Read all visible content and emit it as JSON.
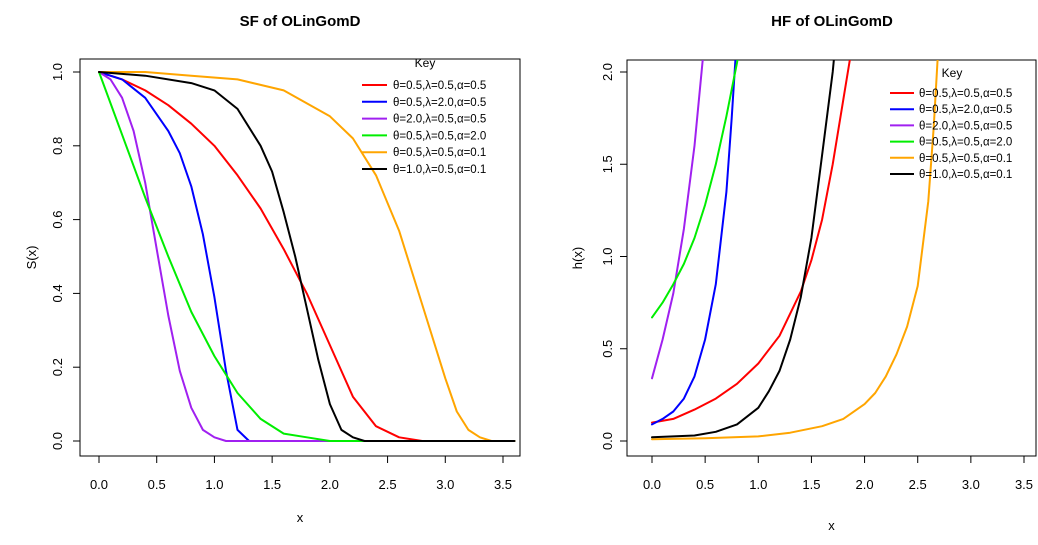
{
  "chart_data": [
    {
      "type": "line",
      "title": "SF of OLinGomD",
      "xlabel": "x",
      "ylabel": "S(x)",
      "xlim": [
        0,
        3.6
      ],
      "ylim": [
        0,
        1
      ],
      "xticks": [
        "0.0",
        "0.5",
        "1.0",
        "1.5",
        "2.0",
        "2.5",
        "3.0",
        "3.5"
      ],
      "yticks": [
        "0.0",
        "0.2",
        "0.4",
        "0.6",
        "0.8",
        "1.0"
      ],
      "grid": false,
      "legend_title": "Key",
      "legend_position": "top-right",
      "series": [
        {
          "name": "θ=0.5,λ=0.5,α=0.5",
          "color": "#ff0000",
          "x": [
            0,
            0.2,
            0.4,
            0.6,
            0.8,
            1.0,
            1.2,
            1.4,
            1.6,
            1.8,
            2.0,
            2.2,
            2.4,
            2.6,
            2.8,
            3.0,
            3.2,
            3.4,
            3.6
          ],
          "y": [
            1.0,
            0.98,
            0.95,
            0.91,
            0.86,
            0.8,
            0.72,
            0.63,
            0.52,
            0.4,
            0.26,
            0.12,
            0.04,
            0.01,
            0.0,
            0.0,
            0.0,
            0.0,
            0.0
          ]
        },
        {
          "name": "θ=0.5,λ=2.0,α=0.5",
          "color": "#0000ff",
          "x": [
            0,
            0.2,
            0.4,
            0.6,
            0.7,
            0.8,
            0.9,
            1.0,
            1.1,
            1.2,
            1.3,
            1.4,
            1.6,
            2.0,
            3.6
          ],
          "y": [
            1.0,
            0.98,
            0.93,
            0.84,
            0.78,
            0.69,
            0.56,
            0.39,
            0.19,
            0.03,
            0.0,
            0.0,
            0.0,
            0.0,
            0.0
          ]
        },
        {
          "name": "θ=2.0,λ=0.5,α=0.5",
          "color": "#a020f0",
          "x": [
            0,
            0.1,
            0.2,
            0.3,
            0.4,
            0.5,
            0.6,
            0.7,
            0.8,
            0.9,
            1.0,
            1.1,
            1.2,
            1.4,
            3.6
          ],
          "y": [
            1.0,
            0.98,
            0.93,
            0.84,
            0.7,
            0.52,
            0.34,
            0.19,
            0.09,
            0.03,
            0.01,
            0.0,
            0.0,
            0.0,
            0.0
          ]
        },
        {
          "name": "θ=0.5,λ=0.5,α=2.0",
          "color": "#00ee00",
          "x": [
            0,
            0.2,
            0.4,
            0.6,
            0.8,
            1.0,
            1.2,
            1.4,
            1.6,
            1.8,
            2.0,
            2.2,
            2.4,
            3.6
          ],
          "y": [
            1.0,
            0.83,
            0.66,
            0.5,
            0.35,
            0.23,
            0.13,
            0.06,
            0.02,
            0.01,
            0.0,
            0.0,
            0.0,
            0.0
          ]
        },
        {
          "name": "θ=0.5,λ=0.5,α=0.1",
          "color": "#ffa500",
          "x": [
            0,
            0.4,
            0.8,
            1.2,
            1.6,
            2.0,
            2.2,
            2.4,
            2.6,
            2.8,
            3.0,
            3.1,
            3.2,
            3.3,
            3.4,
            3.6
          ],
          "y": [
            1.0,
            1.0,
            0.99,
            0.98,
            0.95,
            0.88,
            0.82,
            0.72,
            0.57,
            0.37,
            0.17,
            0.08,
            0.03,
            0.01,
            0.0,
            0.0
          ]
        },
        {
          "name": "θ=1.0,λ=0.5,α=0.1",
          "color": "#000000",
          "x": [
            0,
            0.4,
            0.8,
            1.0,
            1.2,
            1.4,
            1.5,
            1.6,
            1.7,
            1.8,
            1.9,
            2.0,
            2.1,
            2.2,
            2.3,
            2.4,
            3.6
          ],
          "y": [
            1.0,
            0.99,
            0.97,
            0.95,
            0.9,
            0.8,
            0.73,
            0.62,
            0.5,
            0.36,
            0.22,
            0.1,
            0.03,
            0.01,
            0.0,
            0.0,
            0.0
          ]
        }
      ]
    },
    {
      "type": "line",
      "title": "HF of OLinGomD",
      "xlabel": "x",
      "ylabel": "h(x)",
      "xlim": [
        0,
        3.6
      ],
      "ylim": [
        0,
        2.0
      ],
      "xticks": [
        "0.0",
        "0.5",
        "1.0",
        "1.5",
        "2.0",
        "2.5",
        "3.0",
        "3.5"
      ],
      "yticks": [
        "0.0",
        "0.5",
        "1.0",
        "1.5",
        "2.0"
      ],
      "grid": false,
      "legend_title": "Key",
      "legend_position": "top-right",
      "series": [
        {
          "name": "θ=0.5,λ=0.5,α=0.5",
          "color": "#ff0000",
          "x": [
            0,
            0.2,
            0.4,
            0.6,
            0.8,
            1.0,
            1.2,
            1.4,
            1.5,
            1.6,
            1.7,
            1.8,
            1.9
          ],
          "y": [
            0.1,
            0.12,
            0.17,
            0.23,
            0.31,
            0.42,
            0.57,
            0.81,
            0.98,
            1.2,
            1.5,
            1.85,
            2.2
          ]
        },
        {
          "name": "θ=0.5,λ=2.0,α=0.5",
          "color": "#0000ff",
          "x": [
            0,
            0.1,
            0.2,
            0.3,
            0.4,
            0.5,
            0.6,
            0.7,
            0.75,
            0.8,
            0.85
          ],
          "y": [
            0.09,
            0.12,
            0.16,
            0.23,
            0.35,
            0.55,
            0.85,
            1.35,
            1.75,
            2.2,
            2.6
          ]
        },
        {
          "name": "θ=2.0,λ=0.5,α=0.5",
          "color": "#a020f0",
          "x": [
            0,
            0.1,
            0.2,
            0.3,
            0.4,
            0.45,
            0.5
          ],
          "y": [
            0.34,
            0.55,
            0.8,
            1.15,
            1.6,
            1.9,
            2.2
          ]
        },
        {
          "name": "θ=0.5,λ=0.5,α=2.0",
          "color": "#00ee00",
          "x": [
            0,
            0.1,
            0.2,
            0.3,
            0.4,
            0.5,
            0.6,
            0.7,
            0.8,
            0.9
          ],
          "y": [
            0.67,
            0.75,
            0.85,
            0.96,
            1.1,
            1.28,
            1.5,
            1.76,
            2.05,
            2.4
          ]
        },
        {
          "name": "θ=0.5,λ=0.5,α=0.1",
          "color": "#ffa500",
          "x": [
            0,
            0.5,
            1.0,
            1.3,
            1.6,
            1.8,
            2.0,
            2.1,
            2.2,
            2.3,
            2.4,
            2.5,
            2.6,
            2.65,
            2.7
          ],
          "y": [
            0.01,
            0.015,
            0.025,
            0.045,
            0.08,
            0.12,
            0.2,
            0.26,
            0.35,
            0.47,
            0.62,
            0.84,
            1.3,
            1.7,
            2.2
          ]
        },
        {
          "name": "θ=1.0,λ=0.5,α=0.1",
          "color": "#000000",
          "x": [
            0,
            0.4,
            0.6,
            0.8,
            1.0,
            1.1,
            1.2,
            1.3,
            1.4,
            1.5,
            1.6,
            1.7,
            1.75
          ],
          "y": [
            0.02,
            0.03,
            0.05,
            0.09,
            0.18,
            0.27,
            0.38,
            0.55,
            0.78,
            1.1,
            1.55,
            2.0,
            2.3
          ]
        }
      ]
    }
  ]
}
